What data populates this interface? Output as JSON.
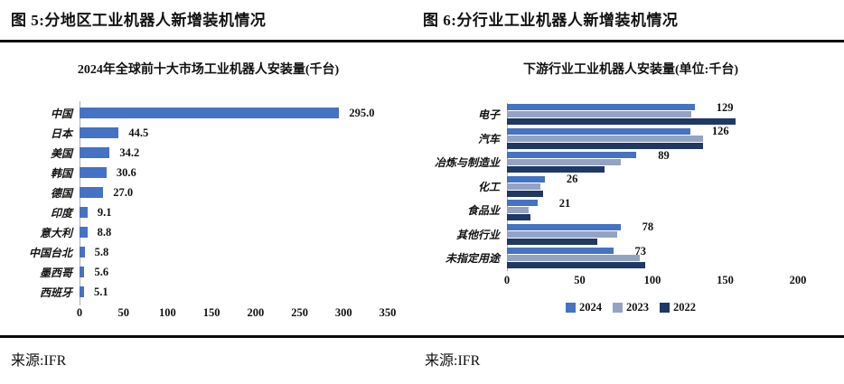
{
  "page": {
    "figure5_heading": "图 5:分地区工业机器人新增装机情况",
    "figure6_heading": "图 6:分行业工业机器人新增装机情况",
    "source_left": "来源:IFR",
    "source_right": "来源:IFR"
  },
  "colors": {
    "bar_2024": "#4472C4",
    "bar_2023": "#94A3C4",
    "bar_2022": "#1F3864",
    "axis_line": "#a9b0bd",
    "rule": "#0a0a0a"
  },
  "chart_data": [
    {
      "type": "bar",
      "orientation": "horizontal",
      "title": "2024年全球前十大市场工业机器人安装量(千台)",
      "categories": [
        "中国",
        "日本",
        "美国",
        "韩国",
        "德国",
        "印度",
        "意大利",
        "中国台北",
        "墨西哥",
        "西班牙"
      ],
      "values": [
        295.0,
        44.5,
        34.2,
        30.6,
        27.0,
        9.1,
        8.8,
        5.8,
        5.6,
        5.1
      ],
      "value_labels": [
        "295.0",
        "44.5",
        "34.2",
        "30.6",
        "27.0",
        "9.1",
        "8.8",
        "5.8",
        "5.6",
        "5.1"
      ],
      "xlim": [
        0,
        350
      ],
      "x_ticks": [
        "0",
        "50",
        "100",
        "150",
        "200",
        "250",
        "300",
        "350"
      ],
      "grid": false,
      "bar_color": "#4472C4"
    },
    {
      "type": "bar",
      "orientation": "horizontal",
      "grouped": true,
      "title": "下游行业工业机器人安装量(单位:千台)",
      "categories": [
        "电子",
        "汽车",
        "冶炼与制造业",
        "化工",
        "食品业",
        "其他行业",
        "未指定用途"
      ],
      "series": [
        {
          "name": "2024",
          "color": "#4472C4",
          "values": [
            129,
            126,
            89,
            26,
            21,
            78,
            73
          ]
        },
        {
          "name": "2023",
          "color": "#94A3C4",
          "values": [
            127,
            135,
            78,
            23,
            15,
            76,
            91
          ]
        },
        {
          "name": "2022",
          "color": "#1F3864",
          "values": [
            157,
            135,
            67,
            25,
            16,
            62,
            95
          ]
        }
      ],
      "value_labels_series": "2024",
      "value_labels": [
        "129",
        "126",
        "89",
        "26",
        "21",
        "78",
        "73"
      ],
      "xlim": [
        0,
        200
      ],
      "x_ticks": [
        "0",
        "50",
        "100",
        "150",
        "200"
      ],
      "grid": false,
      "legend": [
        "2024",
        "2023",
        "2022"
      ],
      "legend_position": "bottom"
    }
  ]
}
